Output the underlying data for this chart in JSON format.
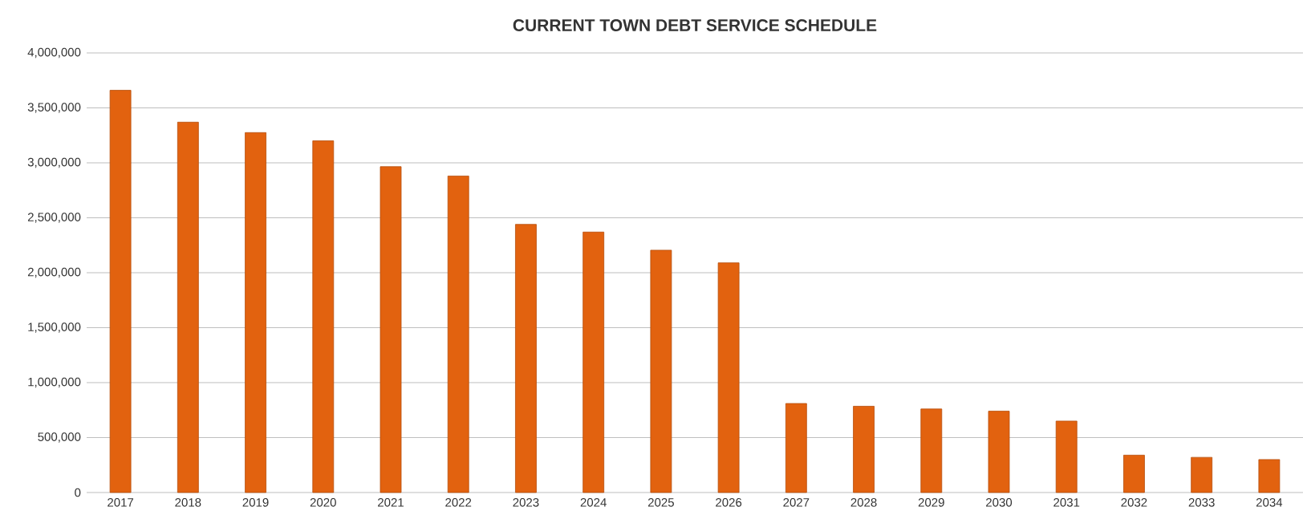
{
  "chart_data": {
    "type": "bar",
    "title": "CURRENT TOWN DEBT SERVICE SCHEDULE",
    "categories": [
      "2017",
      "2018",
      "2019",
      "2020",
      "2021",
      "2022",
      "2023",
      "2024",
      "2025",
      "2026",
      "2027",
      "2028",
      "2029",
      "2030",
      "2031",
      "2032",
      "2033",
      "2034"
    ],
    "values": [
      3660000,
      3370000,
      3275000,
      3200000,
      2965000,
      2880000,
      2440000,
      2370000,
      2205000,
      2090000,
      810000,
      785000,
      760000,
      740000,
      650000,
      340000,
      320000,
      300000
    ],
    "color": "#e2620f",
    "ylim": [
      0,
      4000000
    ],
    "yticks": [
      {
        "value": 0,
        "label": "0"
      },
      {
        "value": 500000,
        "label": "500,000"
      },
      {
        "value": 1000000,
        "label": "1,000,000"
      },
      {
        "value": 1500000,
        "label": "1,500,000"
      },
      {
        "value": 2000000,
        "label": "2,000,000"
      },
      {
        "value": 2500000,
        "label": "2,500,000"
      },
      {
        "value": 3000000,
        "label": "3,000,000"
      },
      {
        "value": 3500000,
        "label": "3,500,000"
      },
      {
        "value": 4000000,
        "label": "4,000,000"
      }
    ],
    "grid": "y"
  }
}
